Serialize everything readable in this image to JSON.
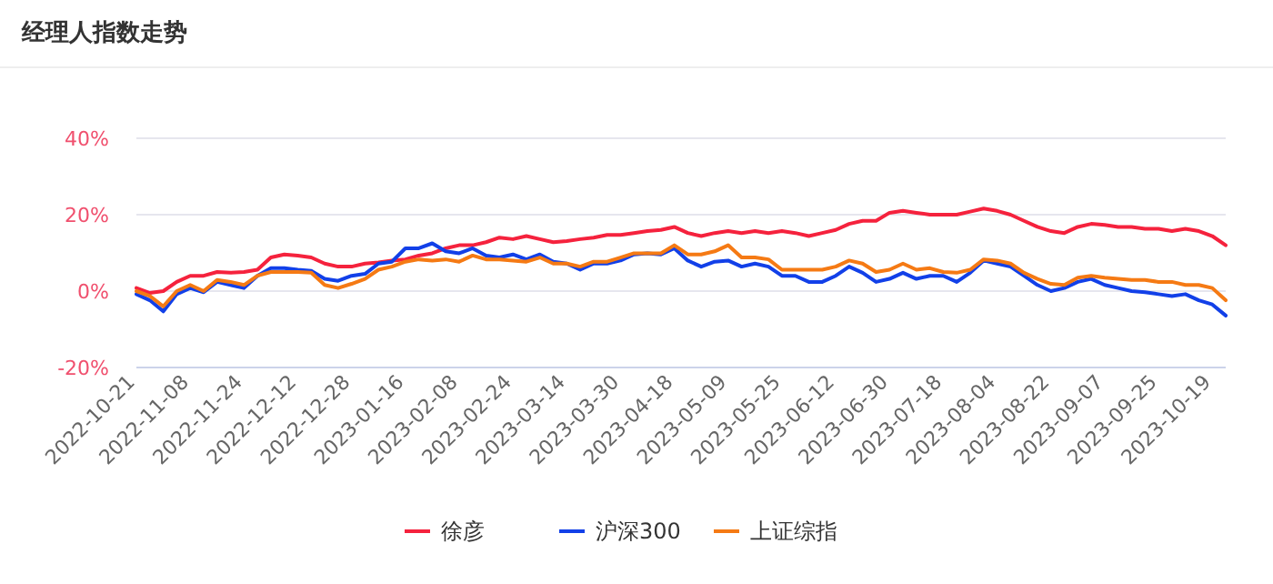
{
  "chart_data": {
    "type": "line",
    "title": "经理人指数走势",
    "categories": [
      "2022-10-21",
      null,
      null,
      null,
      "2022-11-08",
      null,
      null,
      null,
      "2022-11-24",
      null,
      null,
      null,
      "2022-12-12",
      null,
      null,
      null,
      "2022-12-28",
      null,
      null,
      null,
      "2023-01-16",
      null,
      null,
      null,
      "2023-02-08",
      null,
      null,
      null,
      "2023-02-24",
      null,
      null,
      null,
      "2023-03-14",
      null,
      null,
      null,
      "2023-03-30",
      null,
      null,
      null,
      "2023-04-18",
      null,
      null,
      null,
      "2023-05-09",
      null,
      null,
      null,
      "2023-05-25",
      null,
      null,
      null,
      "2023-06-12",
      null,
      null,
      null,
      "2023-06-30",
      null,
      null,
      null,
      "2023-07-18",
      null,
      null,
      null,
      "2023-08-04",
      null,
      null,
      null,
      "2023-08-22",
      null,
      null,
      null,
      "2023-09-07",
      null,
      null,
      null,
      "2023-09-25",
      null,
      null,
      null,
      "2023-10-19",
      null
    ],
    "series": [
      {
        "name": "徐彦",
        "color": "#f5223d",
        "values": [
          0.8,
          -0.5,
          0,
          2.4,
          4,
          4,
          5,
          4.8,
          5,
          5.6,
          8.8,
          9.6,
          9.3,
          8.8,
          7.2,
          6.4,
          6.4,
          7.2,
          7.5,
          8,
          8.3,
          9.3,
          9.9,
          11.2,
          12,
          12,
          12.8,
          14,
          13.6,
          14.4,
          13.6,
          12.8,
          13.1,
          13.6,
          14,
          14.7,
          14.7,
          15.2,
          15.7,
          16,
          16.8,
          15.2,
          14.4,
          15.2,
          15.7,
          15.2,
          15.7,
          15.2,
          15.7,
          15.2,
          14.4,
          15.2,
          16,
          17.6,
          18.4,
          18.4,
          20.5,
          21,
          20.5,
          20,
          20,
          20,
          20.8,
          21.6,
          21,
          20,
          18.4,
          16.8,
          15.7,
          15.2,
          16.8,
          17.6,
          17.3,
          16.8,
          16.8,
          16.3,
          16.3,
          15.7,
          16.3,
          15.7,
          14.4,
          12
        ]
      },
      {
        "name": "沪深300",
        "color": "#1240e8",
        "values": [
          -0.8,
          -2.4,
          -5.3,
          -0.8,
          0.8,
          -0.3,
          2.4,
          1.6,
          0.8,
          4,
          6,
          6,
          5.6,
          5.3,
          3.2,
          2.7,
          4,
          4.5,
          7.2,
          7.7,
          11.2,
          11.2,
          12.5,
          10.4,
          9.9,
          11.2,
          9.3,
          8.8,
          9.6,
          8.3,
          9.6,
          7.7,
          7.2,
          5.6,
          7.2,
          7.2,
          8,
          9.6,
          9.9,
          9.6,
          11.2,
          8,
          6.4,
          7.7,
          8,
          6.4,
          7.2,
          6.4,
          4,
          4,
          2.4,
          2.4,
          4,
          6.4,
          4.8,
          2.4,
          3.2,
          4.8,
          3.2,
          4,
          4,
          2.4,
          4.8,
          8,
          7.2,
          6.4,
          4,
          1.6,
          0,
          0.8,
          2.4,
          3.2,
          1.6,
          0.8,
          0,
          -0.3,
          -0.8,
          -1.3,
          -0.8,
          -2.4,
          -3.5,
          -6.4
        ]
      },
      {
        "name": "上证综指",
        "color": "#f57a14",
        "values": [
          0,
          -1.3,
          -4,
          0,
          1.6,
          0,
          2.9,
          2.4,
          1.6,
          4,
          5,
          5,
          5,
          4.8,
          1.6,
          0.8,
          1.9,
          3.2,
          5.6,
          6.4,
          7.7,
          8.3,
          8,
          8.3,
          7.7,
          9.3,
          8.3,
          8.3,
          8,
          7.7,
          8.8,
          7.2,
          7.2,
          6.4,
          7.7,
          7.7,
          8.8,
          9.9,
          9.9,
          9.9,
          12,
          9.6,
          9.6,
          10.4,
          12,
          8.8,
          8.8,
          8.3,
          5.6,
          5.6,
          5.6,
          5.6,
          6.4,
          8,
          7.2,
          5,
          5.6,
          7.2,
          5.6,
          6,
          5,
          4.8,
          5.6,
          8.3,
          8,
          7.2,
          4.8,
          3.2,
          1.9,
          1.6,
          3.5,
          4,
          3.5,
          3.2,
          2.9,
          2.9,
          2.4,
          2.4,
          1.6,
          1.6,
          0.8,
          -2.4
        ]
      }
    ],
    "ylim": [
      -20,
      40
    ],
    "yticks": [
      {
        "value": -20,
        "label": "-20%"
      },
      {
        "value": 0,
        "label": "0%"
      },
      {
        "value": 20,
        "label": "20%"
      },
      {
        "value": 40,
        "label": "40%"
      }
    ],
    "grid": "y",
    "legend": "bottom",
    "marker": "none",
    "line_style": "solid"
  }
}
